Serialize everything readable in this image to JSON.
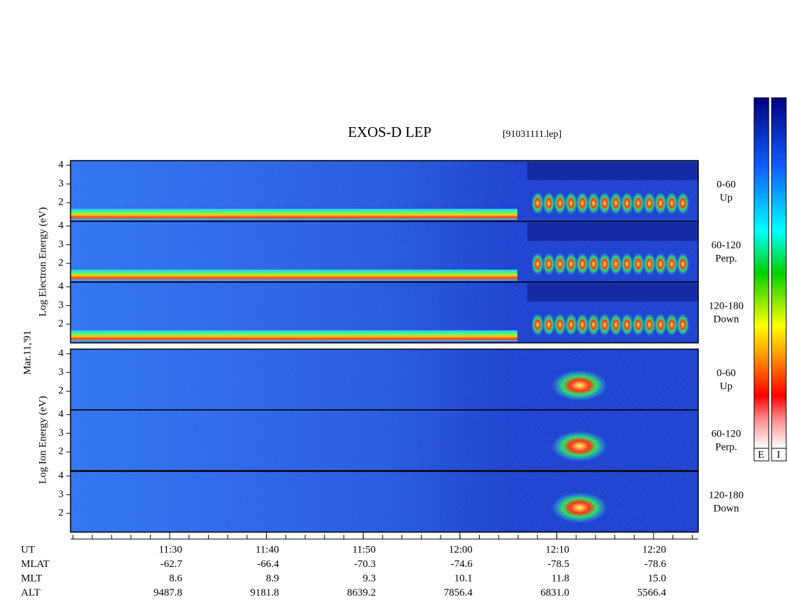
{
  "title": "EXOS-D LEP",
  "file": "[91031111.lep]",
  "date": "Mar.11,'91",
  "electron_axis_label": "Log Electron Energy (eV)",
  "ion_axis_label": "Log Ion Energy (eV)",
  "panels": [
    {
      "species": "electron",
      "angle": "0-60",
      "direction": "Up",
      "ylim": [
        1,
        4.25
      ],
      "yticks": [
        2,
        3,
        4
      ]
    },
    {
      "species": "electron",
      "angle": "60-120",
      "direction": "Perp.",
      "ylim": [
        1,
        4.25
      ],
      "yticks": [
        2,
        3,
        4
      ]
    },
    {
      "species": "electron",
      "angle": "120-180",
      "direction": "Down",
      "ylim": [
        1,
        4.25
      ],
      "yticks": [
        2,
        3,
        4
      ]
    },
    {
      "species": "ion",
      "angle": "0-60",
      "direction": "Up",
      "ylim": [
        1,
        4.25
      ],
      "yticks": [
        2,
        3,
        4
      ]
    },
    {
      "species": "ion",
      "angle": "60-120",
      "direction": "Perp.",
      "ylim": [
        1,
        4.25
      ],
      "yticks": [
        2,
        3,
        4
      ]
    },
    {
      "species": "ion",
      "angle": "120-180",
      "direction": "Down",
      "ylim": [
        1,
        4.25
      ],
      "yticks": [
        2,
        3,
        4
      ]
    }
  ],
  "axis_table": {
    "row_labels": [
      "UT",
      "MLAT",
      "MLT",
      "ALT"
    ],
    "columns": [
      [
        "11:30",
        "-62.7",
        "8.6",
        "9487.8"
      ],
      [
        "11:40",
        "-66.4",
        "8.9",
        "9181.8"
      ],
      [
        "11:50",
        "-70.3",
        "9.3",
        "8639.2"
      ],
      [
        "12:00",
        "-74.6",
        "10.1",
        "7856.4"
      ],
      [
        "12:10",
        "-78.5",
        "11.8",
        "6831.0"
      ],
      [
        "12:20",
        "-78.6",
        "15.0",
        "5566.4"
      ]
    ]
  },
  "colorbar_labels": [
    "E",
    "I"
  ]
}
